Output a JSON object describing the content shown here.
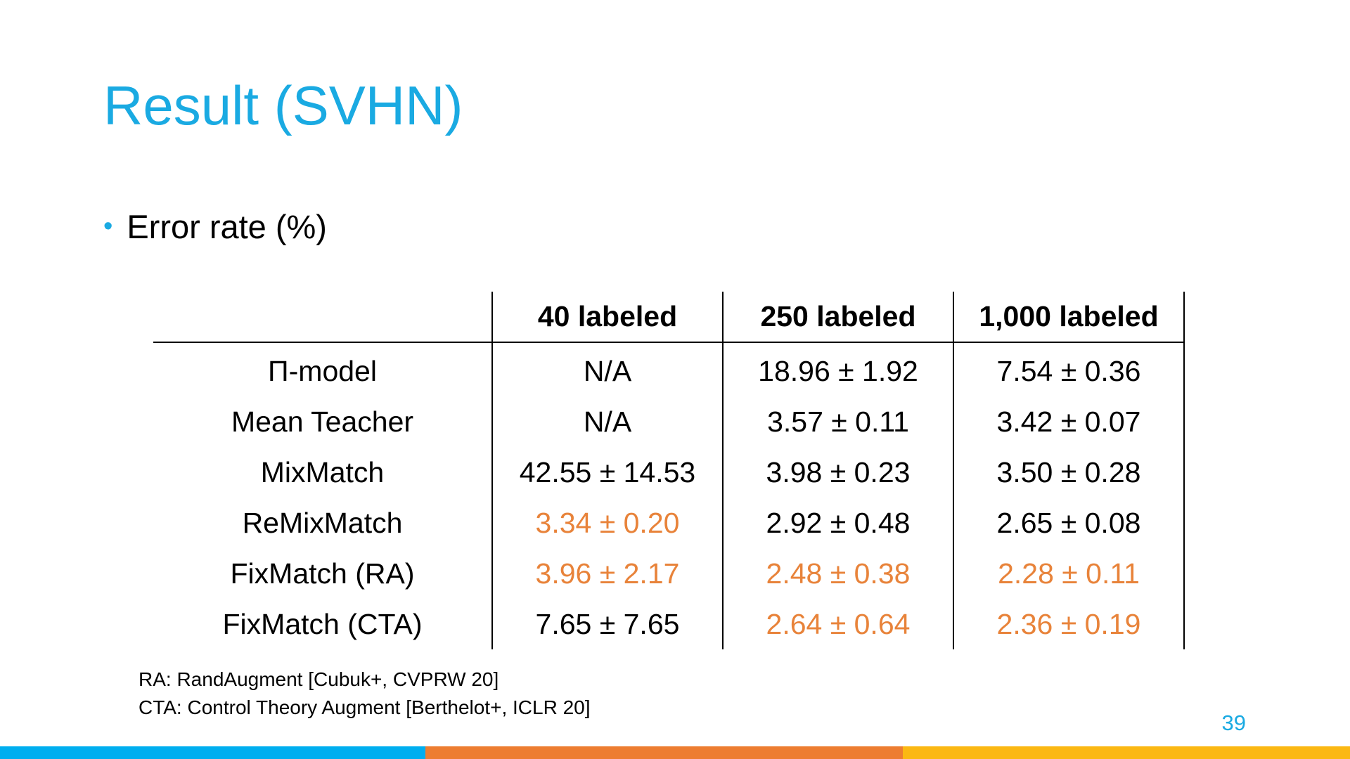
{
  "slide": {
    "title": "Result (SVHN)",
    "bullet": "Error rate (%)",
    "page_number": "39"
  },
  "table": {
    "headers": [
      "",
      "40 labeled",
      "250 labeled",
      "1,000 labeled"
    ],
    "rows": [
      {
        "method": "Π-model",
        "cells": [
          {
            "text": "N/A",
            "highlight": false
          },
          {
            "text": "18.96 ± 1.92",
            "highlight": false
          },
          {
            "text": "7.54 ± 0.36",
            "highlight": false
          }
        ]
      },
      {
        "method": "Mean Teacher",
        "cells": [
          {
            "text": "N/A",
            "highlight": false
          },
          {
            "text": "3.57 ± 0.11",
            "highlight": false
          },
          {
            "text": "3.42 ± 0.07",
            "highlight": false
          }
        ]
      },
      {
        "method": "MixMatch",
        "cells": [
          {
            "text": "42.55 ± 14.53",
            "highlight": false
          },
          {
            "text": "3.98 ± 0.23",
            "highlight": false
          },
          {
            "text": "3.50 ± 0.28",
            "highlight": false
          }
        ]
      },
      {
        "method": "ReMixMatch",
        "cells": [
          {
            "text": "3.34 ± 0.20",
            "highlight": true
          },
          {
            "text": "2.92 ± 0.48",
            "highlight": false
          },
          {
            "text": "2.65 ± 0.08",
            "highlight": false
          }
        ]
      },
      {
        "method": "FixMatch (RA)",
        "cells": [
          {
            "text": "3.96 ± 2.17",
            "highlight": true
          },
          {
            "text": "2.48 ± 0.38",
            "highlight": true
          },
          {
            "text": "2.28 ± 0.11",
            "highlight": true
          }
        ]
      },
      {
        "method": "FixMatch (CTA)",
        "cells": [
          {
            "text": "7.65 ± 7.65",
            "highlight": false
          },
          {
            "text": "2.64 ± 0.64",
            "highlight": true
          },
          {
            "text": "2.36 ± 0.19",
            "highlight": true
          }
        ]
      }
    ]
  },
  "footnotes": [
    "RA: RandAugment [Cubuk+, CVPRW 20]",
    "CTA: Control Theory Augment [Berthelot+, ICLR 20]"
  ],
  "colors": {
    "accent": "#1aaae2",
    "highlight": "#e8833a",
    "text": "#000000",
    "bar_blue": "#00aeef",
    "bar_orange": "#ed7d31",
    "bar_yellow": "#fbb813"
  }
}
